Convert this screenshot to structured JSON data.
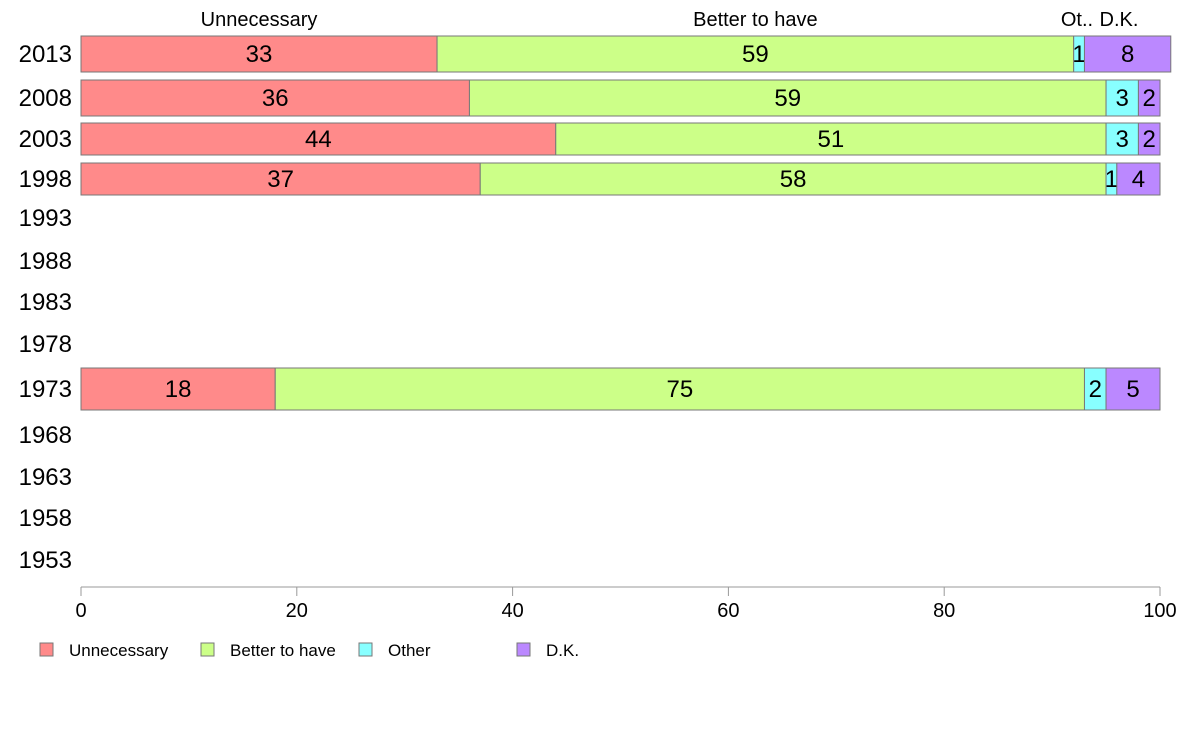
{
  "chart_data": {
    "type": "bar",
    "orientation": "horizontal",
    "stacked": true,
    "years": [
      "2013",
      "2008",
      "2003",
      "1998",
      "1993",
      "1988",
      "1983",
      "1978",
      "1973",
      "1968",
      "1963",
      "1958",
      "1953"
    ],
    "series": [
      {
        "name": "Unnecessary",
        "color": "#ff8a8a",
        "values": [
          33,
          36,
          44,
          37,
          null,
          null,
          null,
          null,
          18,
          null,
          null,
          null,
          null
        ]
      },
      {
        "name": "Better to have",
        "color": "#ccff88",
        "values": [
          59,
          59,
          51,
          58,
          null,
          null,
          null,
          null,
          75,
          null,
          null,
          null,
          null
        ]
      },
      {
        "name": "Other",
        "color": "#88ffff",
        "values": [
          1,
          3,
          3,
          1,
          null,
          null,
          null,
          null,
          2,
          null,
          null,
          null,
          null
        ]
      },
      {
        "name": "D.K.",
        "color": "#bb88ff",
        "values": [
          8,
          2,
          2,
          4,
          null,
          null,
          null,
          null,
          5,
          null,
          null,
          null,
          null
        ]
      }
    ],
    "top_labels": [
      "Unnecessary",
      "Better to have",
      "Ot..",
      "D.K."
    ],
    "xlim": [
      0,
      100
    ],
    "x_ticks": [
      0,
      20,
      40,
      60,
      80,
      100
    ],
    "grid": false,
    "legend_position": "bottom-left"
  }
}
